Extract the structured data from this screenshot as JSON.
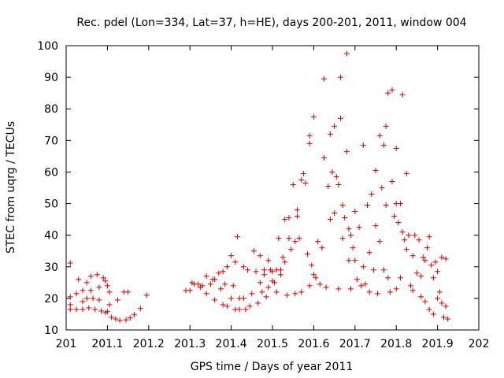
{
  "chart_data": {
    "type": "scatter",
    "title": "Rec. pdel (Lon=334, Lat=37, h=HE), days 200-201, 2011, window 004",
    "xlabel": "GPS time / Days of year 2011",
    "ylabel": "STEC from uqrg / TECUs",
    "xlim": [
      201,
      202
    ],
    "ylim": [
      10,
      100
    ],
    "xticks": [
      "201",
      "201.1",
      "201.2",
      "201.3",
      "201.4",
      "201.5",
      "201.6",
      "201.7",
      "201.8",
      "201.9",
      "202"
    ],
    "yticks": [
      "10",
      "20",
      "30",
      "40",
      "50",
      "60",
      "70",
      "80",
      "90",
      "100"
    ],
    "grid": false,
    "legend": "none",
    "marker": "plus",
    "color": "#cc0000",
    "series": [
      {
        "points": [
          [
            201.01,
            31.2
          ],
          [
            201.01,
            20.5
          ],
          [
            201.01,
            18.0
          ],
          [
            201.01,
            16.5
          ],
          [
            201.025,
            21.5
          ],
          [
            201.025,
            16.5
          ],
          [
            201.03,
            26.0
          ],
          [
            201.04,
            22.5
          ],
          [
            201.04,
            19.0
          ],
          [
            201.04,
            16.5
          ],
          [
            201.05,
            25.0
          ],
          [
            201.05,
            20.0
          ],
          [
            201.055,
            17.0
          ],
          [
            201.06,
            27.0
          ],
          [
            201.06,
            22.5
          ],
          [
            201.065,
            20.0
          ],
          [
            201.07,
            16.5
          ],
          [
            201.075,
            27.5
          ],
          [
            201.08,
            23.5
          ],
          [
            201.08,
            19.5
          ],
          [
            201.085,
            16.0
          ],
          [
            201.09,
            26.5
          ],
          [
            201.095,
            25.5
          ],
          [
            201.095,
            15.5
          ],
          [
            201.1,
            24.0
          ],
          [
            201.1,
            15.8
          ],
          [
            201.105,
            22.0
          ],
          [
            201.105,
            18.0
          ],
          [
            201.11,
            14.0
          ],
          [
            201.12,
            13.5
          ],
          [
            201.125,
            19.5
          ],
          [
            201.13,
            13.0
          ],
          [
            201.14,
            22.0
          ],
          [
            201.145,
            13.2
          ],
          [
            201.15,
            22.0
          ],
          [
            201.155,
            13.8
          ],
          [
            201.165,
            14.8
          ],
          [
            201.18,
            16.8
          ],
          [
            201.195,
            21.0
          ],
          [
            201.29,
            22.5
          ],
          [
            201.3,
            22.5
          ],
          [
            201.305,
            25.0
          ],
          [
            201.31,
            24.5
          ],
          [
            201.32,
            24.5
          ],
          [
            201.325,
            23.5
          ],
          [
            201.33,
            24.0
          ],
          [
            201.34,
            21.5
          ],
          [
            201.34,
            27.0
          ],
          [
            201.35,
            24.5
          ],
          [
            201.355,
            26.0
          ],
          [
            201.36,
            26.0
          ],
          [
            201.36,
            19.5
          ],
          [
            201.37,
            28.0
          ],
          [
            201.375,
            23.0
          ],
          [
            201.38,
            18.0
          ],
          [
            201.38,
            28.5
          ],
          [
            201.385,
            24.5
          ],
          [
            201.39,
            17.5
          ],
          [
            201.39,
            30.0
          ],
          [
            201.4,
            33.5
          ],
          [
            201.4,
            20.0
          ],
          [
            201.405,
            24.0
          ],
          [
            201.41,
            31.5
          ],
          [
            201.41,
            16.5
          ],
          [
            201.415,
            39.5
          ],
          [
            201.42,
            20.0
          ],
          [
            201.42,
            16.5
          ],
          [
            201.43,
            30.0
          ],
          [
            201.43,
            20.0
          ],
          [
            201.435,
            16.5
          ],
          [
            201.44,
            29.0
          ],
          [
            201.445,
            17.5
          ],
          [
            201.45,
            21.5
          ],
          [
            201.455,
            35.0
          ],
          [
            201.46,
            28.5
          ],
          [
            201.465,
            18.5
          ],
          [
            201.47,
            33.5
          ],
          [
            201.47,
            25.0
          ],
          [
            201.475,
            22.0
          ],
          [
            201.48,
            27.5
          ],
          [
            201.48,
            29.0
          ],
          [
            201.485,
            20.5
          ],
          [
            201.49,
            32.0
          ],
          [
            201.49,
            23.5
          ],
          [
            201.495,
            29.0
          ],
          [
            201.5,
            28.5
          ],
          [
            201.5,
            25.5
          ],
          [
            201.505,
            25.0
          ],
          [
            201.51,
            29.0
          ],
          [
            201.51,
            22.0
          ],
          [
            201.515,
            39.0
          ],
          [
            201.52,
            27.5
          ],
          [
            201.52,
            29.0
          ],
          [
            201.525,
            33.0
          ],
          [
            201.53,
            45.0
          ],
          [
            201.53,
            31.5
          ],
          [
            201.535,
            21.0
          ],
          [
            201.54,
            39.0
          ],
          [
            201.54,
            45.5
          ],
          [
            201.545,
            35.5
          ],
          [
            201.55,
            56.0
          ],
          [
            201.555,
            38.0
          ],
          [
            201.555,
            21.5
          ],
          [
            201.56,
            48.0
          ],
          [
            201.56,
            46.0
          ],
          [
            201.565,
            39.0
          ],
          [
            201.57,
            57.5
          ],
          [
            201.57,
            22.0
          ],
          [
            201.575,
            59.5
          ],
          [
            201.58,
            56.5
          ],
          [
            201.585,
            34.0
          ],
          [
            201.59,
            71.5
          ],
          [
            201.59,
            69.0
          ],
          [
            201.59,
            24.0
          ],
          [
            201.595,
            30.5
          ],
          [
            201.6,
            77.5
          ],
          [
            201.6,
            27.5
          ],
          [
            201.605,
            26.5
          ],
          [
            201.61,
            38.0
          ],
          [
            201.615,
            24.5
          ],
          [
            201.62,
            36.0
          ],
          [
            201.625,
            89.5
          ],
          [
            201.625,
            64.5
          ],
          [
            201.63,
            23.5
          ],
          [
            201.635,
            55.5
          ],
          [
            201.64,
            72.0
          ],
          [
            201.64,
            45.0
          ],
          [
            201.645,
            60.0
          ],
          [
            201.65,
            74.5
          ],
          [
            201.65,
            47.0
          ],
          [
            201.655,
            58.5
          ],
          [
            201.66,
            56.0
          ],
          [
            201.66,
            23.0
          ],
          [
            201.665,
            90.0
          ],
          [
            201.665,
            77.0
          ],
          [
            201.67,
            49.5
          ],
          [
            201.67,
            39.0
          ],
          [
            201.675,
            45.5
          ],
          [
            201.68,
            97.5
          ],
          [
            201.68,
            66.5
          ],
          [
            201.685,
            42.0
          ],
          [
            201.685,
            32.0
          ],
          [
            201.69,
            40.0
          ],
          [
            201.69,
            23.0
          ],
          [
            201.695,
            36.0
          ],
          [
            201.7,
            47.5
          ],
          [
            201.7,
            32.0
          ],
          [
            201.705,
            26.0
          ],
          [
            201.71,
            42.5
          ],
          [
            201.715,
            24.0
          ],
          [
            201.72,
            68.5
          ],
          [
            201.72,
            30.0
          ],
          [
            201.725,
            24.5
          ],
          [
            201.73,
            49.5
          ],
          [
            201.735,
            34.5
          ],
          [
            201.735,
            22.0
          ],
          [
            201.74,
            53.0
          ],
          [
            201.745,
            29.0
          ],
          [
            201.75,
            60.5
          ],
          [
            201.75,
            43.0
          ],
          [
            201.755,
            21.5
          ],
          [
            201.76,
            71.5
          ],
          [
            201.76,
            38.0
          ],
          [
            201.765,
            55.0
          ],
          [
            201.77,
            68.5
          ],
          [
            201.77,
            29.0
          ],
          [
            201.775,
            74.5
          ],
          [
            201.775,
            49.5
          ],
          [
            201.78,
            85.0
          ],
          [
            201.78,
            26.5
          ],
          [
            201.785,
            22.0
          ],
          [
            201.79,
            86.0
          ],
          [
            201.79,
            57.0
          ],
          [
            201.795,
            46.0
          ],
          [
            201.8,
            67.5
          ],
          [
            201.8,
            50.0
          ],
          [
            201.8,
            23.0
          ],
          [
            201.805,
            44.0
          ],
          [
            201.81,
            50.0
          ],
          [
            201.81,
            26.5
          ],
          [
            201.815,
            84.5
          ],
          [
            201.815,
            41.0
          ],
          [
            201.82,
            38.5
          ],
          [
            201.825,
            59.5
          ],
          [
            201.825,
            35.5
          ],
          [
            201.83,
            40.0
          ],
          [
            201.835,
            24.0
          ],
          [
            201.84,
            33.5
          ],
          [
            201.84,
            22.5
          ],
          [
            201.845,
            40.0
          ],
          [
            201.85,
            28.0
          ],
          [
            201.855,
            38.5
          ],
          [
            201.86,
            27.0
          ],
          [
            201.86,
            20.5
          ],
          [
            201.865,
            33.0
          ],
          [
            201.87,
            32.0
          ],
          [
            201.87,
            19.0
          ],
          [
            201.875,
            36.0
          ],
          [
            201.88,
            39.5
          ],
          [
            201.88,
            16.5
          ],
          [
            201.885,
            30.5
          ],
          [
            201.89,
            26.5
          ],
          [
            201.89,
            15.0
          ],
          [
            201.895,
            31.5
          ],
          [
            201.9,
            28.5
          ],
          [
            201.9,
            20.0
          ],
          [
            201.905,
            22.0
          ],
          [
            201.91,
            33.0
          ],
          [
            201.91,
            18.5
          ],
          [
            201.915,
            14.0
          ],
          [
            201.92,
            32.5
          ],
          [
            201.92,
            17.5
          ],
          [
            201.925,
            13.5
          ]
        ]
      }
    ]
  }
}
